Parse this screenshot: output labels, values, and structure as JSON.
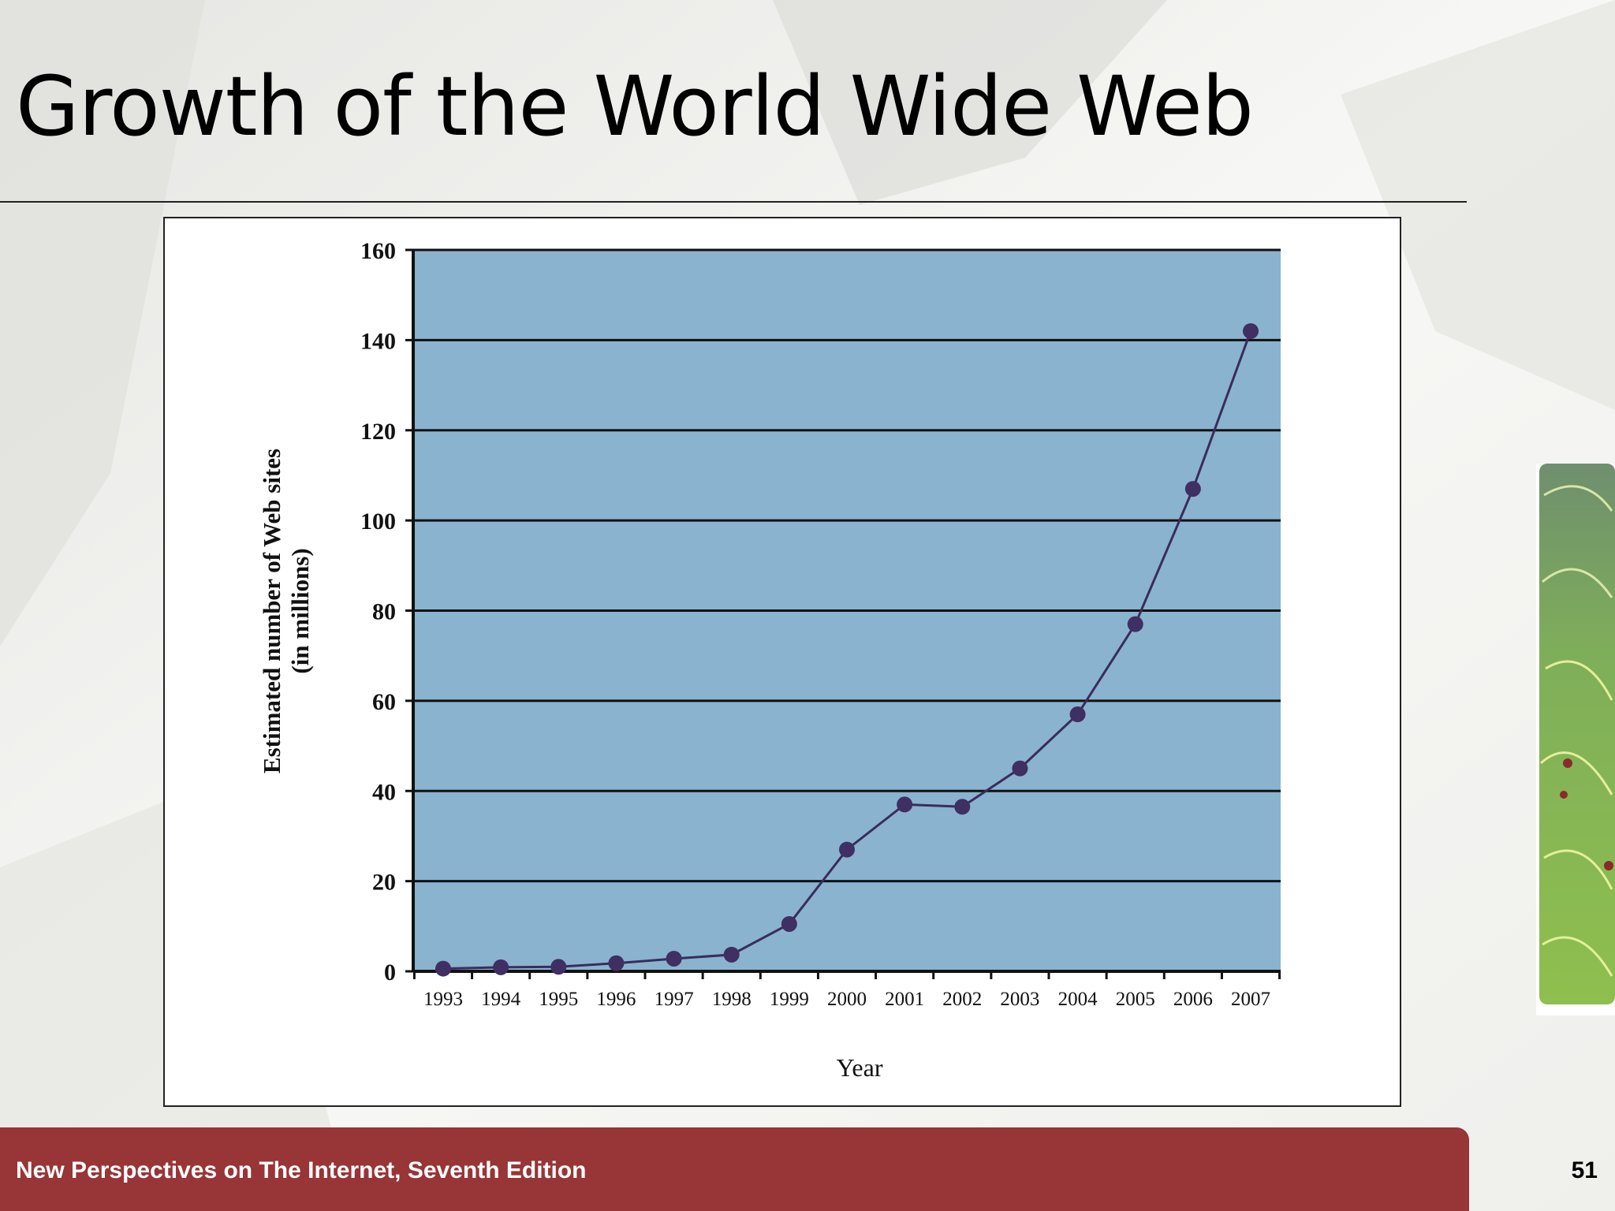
{
  "slide": {
    "title": "Growth of the World Wide Web",
    "footer": "New Perspectives on The Internet, Seventh Edition",
    "page_number": "51"
  },
  "chart_data": {
    "type": "line",
    "title": "",
    "xlabel": "Year",
    "ylabel": "Estimated number of Web sites",
    "ylabel_sub": "(in millions)",
    "x": [
      "1993",
      "1994",
      "1995",
      "1996",
      "1997",
      "1998",
      "1999",
      "2000",
      "2001",
      "2002",
      "2003",
      "2004",
      "2005",
      "2006",
      "2007"
    ],
    "series": [
      {
        "values": [
          0.6,
          0.9,
          1.0,
          1.8,
          2.8,
          3.7,
          10.5,
          27,
          37,
          36.5,
          45,
          57,
          77,
          107,
          142
        ]
      }
    ],
    "ylim": [
      0,
      160
    ],
    "yticks": [
      0,
      20,
      40,
      60,
      80,
      100,
      120,
      140,
      160
    ],
    "grid": true,
    "colors": {
      "plot_background": "#8ab3cf",
      "line": "#3a2c5e",
      "marker": "#3f2f63",
      "gridline": "#111111"
    }
  }
}
